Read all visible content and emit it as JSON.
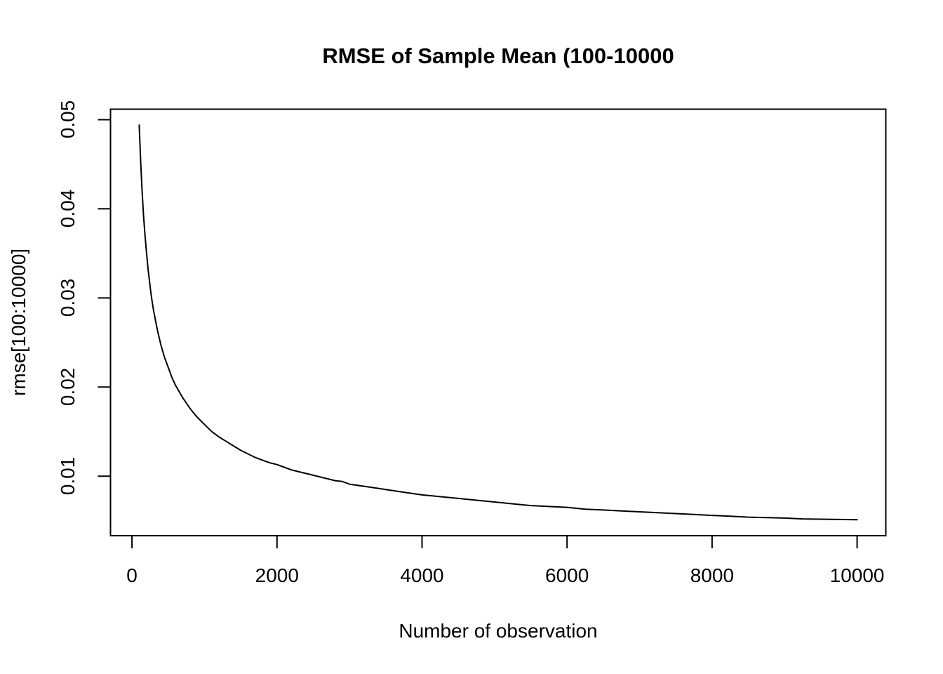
{
  "page": {
    "background_color": "#ffffff",
    "foreground_color": "#000000"
  },
  "chart_data": {
    "type": "line",
    "title": "RMSE of Sample Mean (100-10000",
    "xlabel": "Number of observation",
    "ylabel": "rmse[100:10000]",
    "legend": null,
    "grid": false,
    "line_color": "#000000",
    "line_width": 2,
    "xlim": [
      -296,
      10396
    ],
    "ylim": [
      0.00332,
      0.05118
    ],
    "x_ticks": [
      0,
      2000,
      4000,
      6000,
      8000,
      10000
    ],
    "x_tick_labels": [
      "0",
      "2000",
      "4000",
      "6000",
      "8000",
      "10000"
    ],
    "y_ticks": [
      0.01,
      0.02,
      0.03,
      0.04,
      0.05
    ],
    "y_tick_labels": [
      "0.01",
      "0.02",
      "0.03",
      "0.04",
      "0.05"
    ],
    "x": [
      100,
      120,
      140,
      160,
      180,
      200,
      220,
      240,
      260,
      280,
      300,
      350,
      400,
      450,
      500,
      550,
      600,
      650,
      700,
      750,
      800,
      850,
      900,
      950,
      1000,
      1100,
      1200,
      1300,
      1400,
      1500,
      1600,
      1700,
      1800,
      1900,
      2000,
      2100,
      2200,
      2300,
      2400,
      2500,
      2600,
      2700,
      2800,
      2900,
      3000,
      3250,
      3500,
      3750,
      4000,
      4250,
      4500,
      4750,
      5000,
      5250,
      5500,
      5750,
      6000,
      6250,
      6500,
      6750,
      7000,
      7250,
      7500,
      7750,
      8000,
      8250,
      8500,
      8750,
      9000,
      9250,
      9500,
      9750,
      10000
    ],
    "y": [
      0.0494,
      0.0453,
      0.0419,
      0.0392,
      0.037,
      0.0351,
      0.0334,
      0.032,
      0.0306,
      0.0295,
      0.0285,
      0.0264,
      0.0247,
      0.0233,
      0.0222,
      0.0211,
      0.0202,
      0.0195,
      0.0188,
      0.0182,
      0.0176,
      0.0171,
      0.0166,
      0.0162,
      0.0158,
      0.015,
      0.0144,
      0.0139,
      0.0134,
      0.0129,
      0.0125,
      0.0121,
      0.0118,
      0.0115,
      0.0113,
      0.011,
      0.0107,
      0.0105,
      0.0103,
      0.0101,
      0.0099,
      0.0097,
      0.0095,
      0.0094,
      0.0091,
      0.0088,
      0.0085,
      0.0082,
      0.0079,
      0.0077,
      0.0075,
      0.0073,
      0.0071,
      0.0069,
      0.0067,
      0.0066,
      0.0065,
      0.0063,
      0.0062,
      0.0061,
      0.006,
      0.0059,
      0.0058,
      0.0057,
      0.0056,
      0.0055,
      0.0054,
      0.00535,
      0.0053,
      0.0052,
      0.00517,
      0.00514,
      0.00512
    ]
  }
}
